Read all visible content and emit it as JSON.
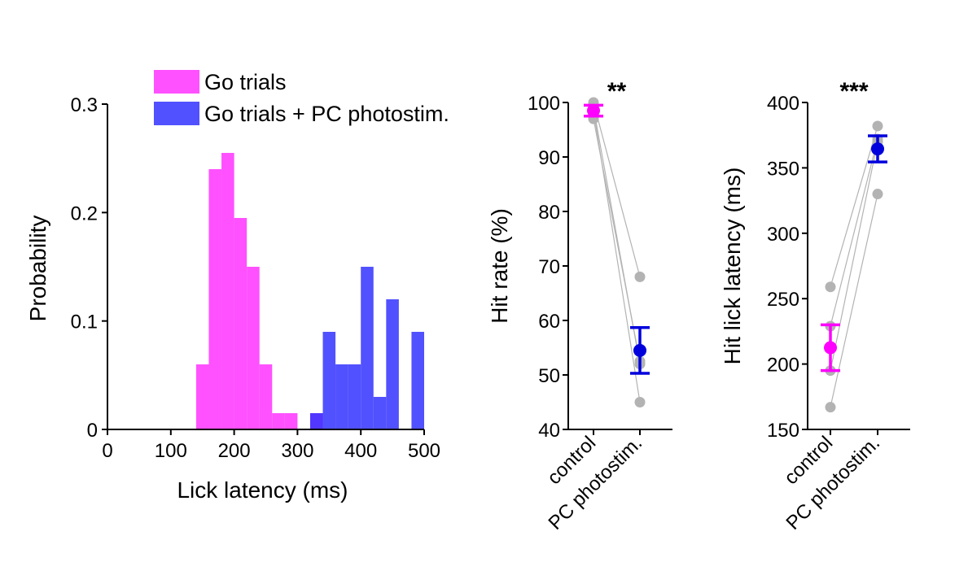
{
  "chart_data": [
    {
      "type": "bar",
      "subtype": "histogram",
      "xlabel": "Lick latency (ms)",
      "ylabel": "Probability",
      "xlim": [
        0,
        500
      ],
      "ylim": [
        0,
        0.3
      ],
      "xticks": [
        0,
        100,
        200,
        300,
        400,
        500
      ],
      "yticks": [
        0,
        0.1,
        0.2,
        0.3
      ],
      "ytick_labels": [
        "0",
        "0.1",
        "0.2",
        "0.3"
      ],
      "bin_width": 20,
      "legend_placement": "top",
      "series": [
        {
          "name": "Go trials",
          "color": "#ff33ff",
          "bins": [
            [
              140,
              0.06
            ],
            [
              160,
              0.24
            ],
            [
              180,
              0.255
            ],
            [
              200,
              0.195
            ],
            [
              220,
              0.15
            ],
            [
              240,
              0.06
            ],
            [
              260,
              0.015
            ],
            [
              280,
              0.015
            ],
            [
              320,
              0.015
            ]
          ]
        },
        {
          "name": "Go trials + PC photostim.",
          "color": "#3333ff",
          "bins": [
            [
              320,
              0.015
            ],
            [
              340,
              0.09
            ],
            [
              360,
              0.06
            ],
            [
              380,
              0.06
            ],
            [
              400,
              0.15
            ],
            [
              420,
              0.03
            ],
            [
              440,
              0.12
            ],
            [
              480,
              0.09
            ]
          ]
        }
      ]
    },
    {
      "type": "scatter",
      "subtype": "paired",
      "ylabel": "Hit rate (%)",
      "ylim": [
        40,
        100
      ],
      "yticks": [
        40,
        50,
        60,
        70,
        80,
        90,
        100
      ],
      "categories": [
        "control",
        "PC photostim."
      ],
      "significance": "**",
      "individual": [
        [
          100,
          68
        ],
        [
          97,
          52.5
        ],
        [
          98.5,
          45
        ],
        [
          99,
          52
        ]
      ],
      "mean": [
        98.5,
        54.5
      ],
      "error": [
        1,
        4.2
      ],
      "individual_color": "#b3b3b3",
      "colors": [
        "#ff00ff",
        "#0000dd"
      ]
    },
    {
      "type": "scatter",
      "subtype": "paired",
      "ylabel": "Hit lick latency (ms)",
      "ylim": [
        150,
        400
      ],
      "yticks": [
        150,
        200,
        250,
        300,
        350,
        400
      ],
      "categories": [
        "control",
        "PC photostim."
      ],
      "significance": "***",
      "individual": [
        [
          167,
          330
        ],
        [
          195,
          370
        ],
        [
          229,
          372
        ],
        [
          259,
          382
        ]
      ],
      "mean": [
        212.5,
        364.5
      ],
      "error": [
        17.5,
        10
      ],
      "individual_color": "#b3b3b3",
      "colors": [
        "#ff00ff",
        "#0000dd"
      ]
    }
  ]
}
